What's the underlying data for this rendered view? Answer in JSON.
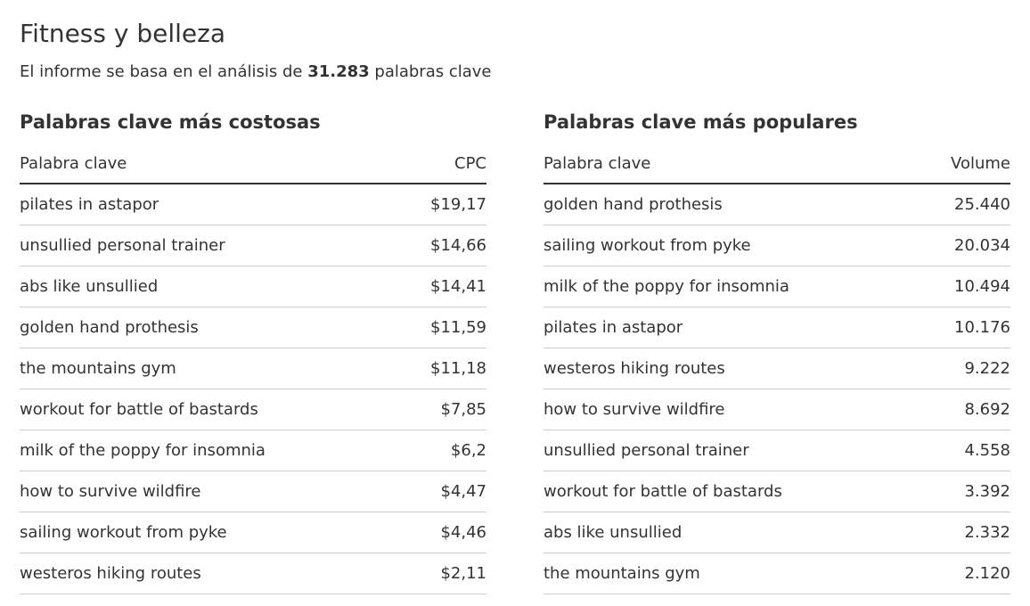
{
  "header": {
    "title": "Fitness y belleza",
    "subtitle_prefix": "El informe se basa en el análisis de ",
    "subtitle_count": "31.283",
    "subtitle_suffix": " palabras clave"
  },
  "costly": {
    "heading": "Palabras clave más costosas",
    "col_keyword": "Palabra clave",
    "col_value": "CPC",
    "rows": [
      {
        "keyword": "pilates in astapor",
        "value": "$19,17"
      },
      {
        "keyword": "unsullied personal trainer",
        "value": "$14,66"
      },
      {
        "keyword": "abs like unsullied",
        "value": "$14,41"
      },
      {
        "keyword": "golden hand prothesis",
        "value": "$11,59"
      },
      {
        "keyword": "the mountains gym",
        "value": "$11,18"
      },
      {
        "keyword": "workout for battle of bastards",
        "value": "$7,85"
      },
      {
        "keyword": "milk of the poppy for insomnia",
        "value": "$6,2"
      },
      {
        "keyword": "how to survive wildfire",
        "value": "$4,47"
      },
      {
        "keyword": "sailing workout from pyke",
        "value": "$4,46"
      },
      {
        "keyword": "westeros hiking routes",
        "value": "$2,11"
      }
    ]
  },
  "popular": {
    "heading": "Palabras clave más populares",
    "col_keyword": "Palabra clave",
    "col_value": "Volume",
    "rows": [
      {
        "keyword": "golden hand prothesis",
        "value": "25.440"
      },
      {
        "keyword": "sailing workout from pyke",
        "value": "20.034"
      },
      {
        "keyword": "milk of the poppy for insomnia",
        "value": "10.494"
      },
      {
        "keyword": "pilates in astapor",
        "value": "10.176"
      },
      {
        "keyword": "westeros hiking routes",
        "value": "9.222"
      },
      {
        "keyword": "how to survive wildfire",
        "value": "8.692"
      },
      {
        "keyword": "unsullied personal trainer",
        "value": "4.558"
      },
      {
        "keyword": "workout for battle of bastards",
        "value": "3.392"
      },
      {
        "keyword": "abs like unsullied",
        "value": "2.332"
      },
      {
        "keyword": "the mountains gym",
        "value": "2.120"
      }
    ]
  }
}
